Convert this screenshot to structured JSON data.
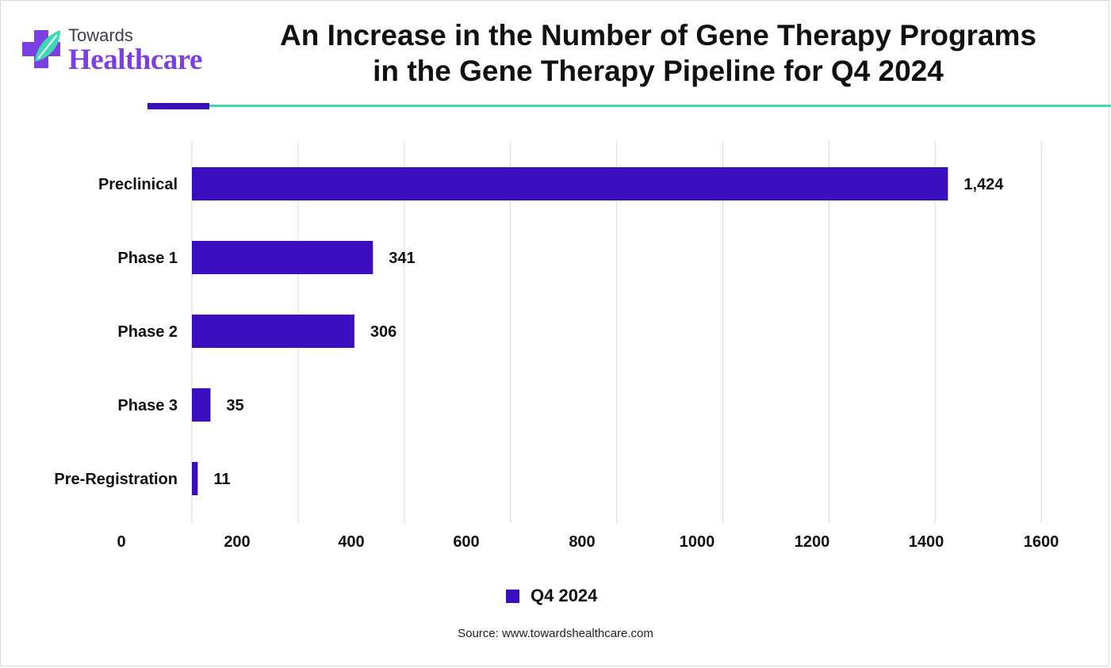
{
  "brand": {
    "line1": "Towards",
    "line2": "Healthcare"
  },
  "title_lines": [
    "An Increase in the Number of Gene Therapy Programs",
    "in the Gene Therapy Pipeline for Q4 2024"
  ],
  "source": "Source: www.towardshealthcare.com",
  "chart_data": {
    "type": "bar",
    "orientation": "horizontal",
    "title": "An Increase in the Number of Gene Therapy Programs in the Gene Therapy Pipeline for Q4 2024",
    "categories": [
      "Preclinical",
      "Phase 1",
      "Phase 2",
      "Phase 3",
      "Pre-Registration"
    ],
    "series": [
      {
        "name": "Q4 2024",
        "values": [
          1424,
          341,
          306,
          35,
          11
        ],
        "labels": [
          "1,424",
          "341",
          "306",
          "35",
          "11"
        ]
      }
    ],
    "x_ticks": [
      "0",
      "200",
      "400",
      "600",
      "800",
      "1000",
      "1200",
      "1400",
      "1600"
    ],
    "xlim": [
      0,
      1600
    ],
    "grid": "vertical",
    "legend_position": "bottom",
    "bar_color": "#3b0fbf"
  }
}
